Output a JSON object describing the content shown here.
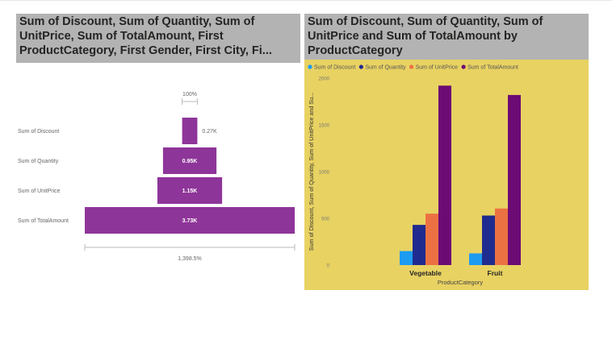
{
  "chart_data": [
    {
      "type": "funnel",
      "title": "Sum of Discount, Sum of Quantity, Sum of UnitPrice, Sum of TotalAmount, First ProductCategory, First Gender, First City, Fi...",
      "categories": [
        "Sum of Discount",
        "Sum of Quantity",
        "Sum of UnitPrice",
        "Sum of TotalAmount"
      ],
      "values": [
        270,
        950,
        1150,
        3730
      ],
      "data_labels": [
        "0.27K",
        "0.95K",
        "1.15K",
        "3.73K"
      ],
      "top_label": "100%",
      "bottom_label": "1,398.5%",
      "bar_color": "#8e3599"
    },
    {
      "type": "bar",
      "title": "Sum of Discount, Sum of Quantity, Sum of UnitPrice and Sum of TotalAmount by ProductCategory",
      "xlabel": "ProductCategory",
      "ylabel": "Sum of Discount, Sum of Quantity, Sum of UnitPrice and Su...",
      "categories": [
        "Vegetable",
        "Fruit"
      ],
      "ylim": [
        0,
        2000
      ],
      "yticks": [
        "0",
        "500",
        "1000",
        "1500",
        "2000"
      ],
      "legend_position": "top-left",
      "series": [
        {
          "name": "Sum of Discount",
          "color": "#1c9bf0",
          "values": [
            150,
            125
          ]
        },
        {
          "name": "Sum of Quantity",
          "color": "#1f2b8e",
          "values": [
            430,
            530
          ]
        },
        {
          "name": "Sum of UnitPrice",
          "color": "#ec7142",
          "values": [
            550,
            605
          ]
        },
        {
          "name": "Sum of TotalAmount",
          "color": "#6d0b74",
          "values": [
            1920,
            1820
          ]
        }
      ],
      "background": "#e8d262"
    }
  ]
}
